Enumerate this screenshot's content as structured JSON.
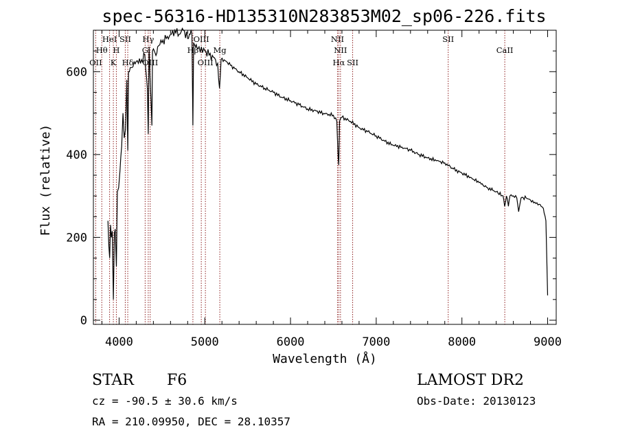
{
  "chart_data": {
    "type": "line",
    "title": "spec-56316-HD135310N283853M02_sp06-226.fits",
    "xlabel": "Wavelength (Å)",
    "ylabel": "Flux (relative)",
    "xlim": [
      3700,
      9100
    ],
    "ylim": [
      -10,
      700
    ],
    "x_ticks": [
      4000,
      5000,
      6000,
      7000,
      8000,
      9000
    ],
    "y_ticks": [
      0,
      200,
      400,
      600
    ],
    "grid": false,
    "line_color": "#000000",
    "marker_color": "#8b1a1a",
    "series": [
      {
        "x": [
          3800,
          3840,
          3860,
          3870,
          3880,
          3890,
          3900,
          3910,
          3920,
          3933,
          3945,
          3955,
          3968,
          3980,
          3995,
          4010,
          4030,
          4045,
          4060,
          4075,
          4090,
          4101,
          4110,
          4130,
          4150,
          4200,
          4250,
          4300,
          4330,
          4340,
          4350,
          4383,
          4390,
          4420,
          4450,
          4500,
          4550,
          4600,
          4650,
          4700,
          4750,
          4800,
          4830,
          4850,
          4861,
          4870,
          4890,
          4920,
          4960,
          5000,
          5050,
          5100,
          5150,
          5172,
          5190,
          5250,
          5300,
          5400,
          5500,
          5600,
          5700,
          5800,
          5900,
          6000,
          6100,
          6200,
          6300,
          6400,
          6500,
          6540,
          6555,
          6563,
          6572,
          6600,
          6700,
          6800,
          6900,
          7000,
          7100,
          7200,
          7300,
          7400,
          7500,
          7600,
          7700,
          7800,
          7900,
          8000,
          8100,
          8200,
          8300,
          8400,
          8480,
          8498,
          8520,
          8542,
          8560,
          8600,
          8640,
          8662,
          8690,
          8750,
          8800,
          8850,
          8900,
          8950,
          8980,
          9000
        ],
        "y": [
          null,
          null,
          null,
          240,
          180,
          150,
          230,
          200,
          215,
          50,
          210,
          220,
          130,
          310,
          320,
          360,
          420,
          500,
          440,
          460,
          580,
          410,
          600,
          610,
          610,
          625,
          620,
          640,
          560,
          450,
          660,
          470,
          650,
          645,
          660,
          670,
          680,
          690,
          700,
          690,
          700,
          680,
          690,
          690,
          470,
          670,
          660,
          655,
          660,
          650,
          640,
          635,
          620,
          560,
          630,
          625,
          615,
          600,
          585,
          570,
          560,
          550,
          538,
          530,
          520,
          510,
          505,
          498,
          495,
          480,
          400,
          375,
          480,
          490,
          480,
          465,
          455,
          445,
          432,
          422,
          418,
          410,
          400,
          392,
          385,
          380,
          365,
          355,
          345,
          332,
          320,
          310,
          300,
          275,
          300,
          275,
          300,
          300,
          295,
          262,
          295,
          295,
          290,
          285,
          280,
          270,
          240,
          60
        ]
      }
    ],
    "markers": [
      {
        "wavelength": 3727,
        "label": "OII",
        "row": 3
      },
      {
        "wavelength": 3798,
        "label": "Hθ",
        "row": 2
      },
      {
        "wavelength": 3889,
        "label": "HeI",
        "row": 1
      },
      {
        "wavelength": 3933,
        "label": "K",
        "row": 3
      },
      {
        "wavelength": 3968,
        "label": "H",
        "row": 2
      },
      {
        "wavelength": 4072,
        "label": "SII",
        "row": 1
      },
      {
        "wavelength": 4101,
        "label": "Hδ",
        "row": 3
      },
      {
        "wavelength": 4304,
        "label": "G",
        "row": 2
      },
      {
        "wavelength": 4340,
        "label": "Hγ",
        "row": 1
      },
      {
        "wavelength": 4363,
        "label": "OIII",
        "row": 3
      },
      {
        "wavelength": 4861,
        "label": "Hβ",
        "row": 2
      },
      {
        "wavelength": 4959,
        "label": "OIII",
        "row": 1
      },
      {
        "wavelength": 5007,
        "label": "OIII",
        "row": 3
      },
      {
        "wavelength": 5175,
        "label": "Mg",
        "row": 2
      },
      {
        "wavelength": 6548,
        "label": "NII",
        "row": 1
      },
      {
        "wavelength": 6563,
        "label": "Hα",
        "row": 3
      },
      {
        "wavelength": 6583,
        "label": "NII",
        "row": 2
      },
      {
        "wavelength": 6725,
        "label": "SII",
        "row": 3
      },
      {
        "wavelength": 7840,
        "label": "SII",
        "row": 1
      },
      {
        "wavelength": 8500,
        "label": "CaII",
        "row": 2
      }
    ]
  },
  "info": {
    "class": "STAR",
    "subclass": "F6",
    "survey": "LAMOST DR2",
    "redshift": "cz = -90.5 ± 30.6 km/s",
    "obsdate": "Obs-Date: 20130123",
    "coords": "RA = 210.09950, DEC =  28.10357"
  }
}
